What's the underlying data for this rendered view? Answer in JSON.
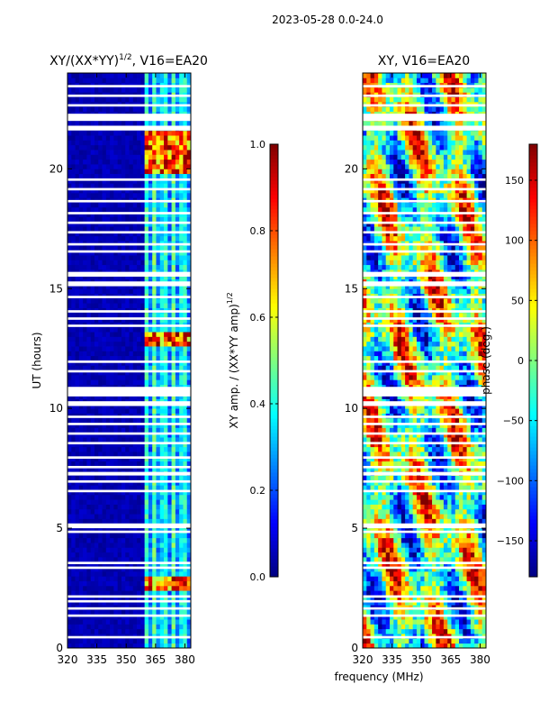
{
  "figure": {
    "suptitle": "2023-05-28 0.0-24.0",
    "shared_xlabel": "frequency (MHz)"
  },
  "colors": {
    "jet": [
      "#00007f",
      "#0000ff",
      "#007fff",
      "#00ffff",
      "#7fff7f",
      "#ffff00",
      "#ff7f00",
      "#ff0000",
      "#7f0000"
    ],
    "gap": "#ffffff"
  },
  "chart_data": [
    {
      "type": "heatmap",
      "name": "amplitude",
      "title_main": "XY/(XX*YY)",
      "title_sup": "1/2",
      "title_suffix": ", V16=EA20",
      "xlabel": "",
      "ylabel": "UT (hours)",
      "xlim": [
        320,
        383
      ],
      "ylim": [
        0,
        24
      ],
      "xticks": [
        320,
        335,
        350,
        365,
        380
      ],
      "yticks": [
        0,
        5,
        10,
        15,
        20
      ],
      "colorbar": {
        "label_main": "XY amp. / (XX*YY amp)",
        "label_sup": "1/2",
        "range": [
          0.0,
          1.0
        ],
        "ticks": [
          "0.0",
          "0.2",
          "0.4",
          "0.6",
          "0.8",
          "1.0"
        ],
        "tick_values": [
          0.0,
          0.2,
          0.4,
          0.6,
          0.8,
          1.0
        ]
      },
      "active_band_mhz": [
        360,
        381
      ],
      "bright_rows_ut": [
        [
          19.8,
          21.5
        ],
        [
          12.7,
          13.1
        ],
        [
          2.5,
          2.9
        ]
      ]
    },
    {
      "type": "heatmap",
      "name": "phase",
      "title_main": "XY, V16=EA20",
      "xlabel": "frequency (MHz)",
      "ylabel": "",
      "xlim": [
        320,
        383
      ],
      "ylim": [
        0,
        24
      ],
      "xticks": [
        320,
        335,
        350,
        365,
        380
      ],
      "yticks": [
        0,
        5,
        10,
        15,
        20
      ],
      "colorbar": {
        "label_main": "phase (deg.)",
        "range": [
          -180,
          180
        ],
        "ticks": [
          "−150",
          "−100",
          "−50",
          "0",
          "50",
          "100",
          "150"
        ],
        "tick_values": [
          -150,
          -100,
          -50,
          0,
          50,
          100,
          150
        ]
      }
    }
  ],
  "flagged_ut_rows": [
    [
      0.4,
      0.5
    ],
    [
      1.3,
      1.4
    ],
    [
      1.6,
      1.7
    ],
    [
      1.9,
      2.0
    ],
    [
      2.1,
      2.2
    ],
    [
      3.3,
      3.4
    ],
    [
      3.5,
      3.6
    ],
    [
      4.8,
      4.9
    ],
    [
      5.0,
      5.2
    ],
    [
      6.5,
      6.6
    ],
    [
      6.9,
      7.0
    ],
    [
      7.2,
      7.35
    ],
    [
      7.5,
      7.6
    ],
    [
      7.9,
      8.0
    ],
    [
      8.5,
      8.6
    ],
    [
      8.9,
      9.0
    ],
    [
      9.3,
      9.4
    ],
    [
      9.6,
      9.7
    ],
    [
      10.1,
      10.3
    ],
    [
      10.5,
      10.9
    ],
    [
      11.5,
      11.6
    ],
    [
      11.9,
      12.0
    ],
    [
      13.4,
      13.5
    ],
    [
      13.7,
      13.8
    ],
    [
      14.0,
      14.1
    ],
    [
      14.6,
      14.7
    ],
    [
      15.1,
      15.3
    ],
    [
      15.5,
      15.7
    ],
    [
      16.5,
      16.6
    ],
    [
      16.8,
      16.9
    ],
    [
      17.3,
      17.4
    ],
    [
      17.7,
      17.8
    ],
    [
      18.1,
      18.2
    ],
    [
      18.6,
      18.7
    ],
    [
      19.1,
      19.2
    ],
    [
      19.5,
      19.6
    ],
    [
      21.6,
      21.8
    ],
    [
      22.0,
      22.3
    ],
    [
      22.6,
      22.7
    ],
    [
      23.0,
      23.1
    ],
    [
      23.4,
      23.5
    ]
  ]
}
